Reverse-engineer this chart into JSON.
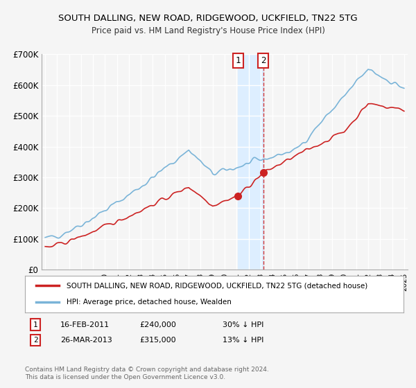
{
  "title": "SOUTH DALLING, NEW ROAD, RIDGEWOOD, UCKFIELD, TN22 5TG",
  "subtitle": "Price paid vs. HM Land Registry's House Price Index (HPI)",
  "legend_line1": "SOUTH DALLING, NEW ROAD, RIDGEWOOD, UCKFIELD, TN22 5TG (detached house)",
  "legend_line2": "HPI: Average price, detached house, Wealden",
  "footer": "Contains HM Land Registry data © Crown copyright and database right 2024.\nThis data is licensed under the Open Government Licence v3.0.",
  "annotation1_date": "16-FEB-2011",
  "annotation1_price": "£240,000",
  "annotation1_hpi": "30% ↓ HPI",
  "annotation2_date": "26-MAR-2013",
  "annotation2_price": "£315,000",
  "annotation2_hpi": "13% ↓ HPI",
  "hpi_color": "#7ab4d8",
  "price_color": "#cc2222",
  "annotation_color": "#cc2222",
  "shade_color": "#ddeeff",
  "background_color": "#f5f5f5",
  "plot_bg_color": "#f5f5f5",
  "grid_color": "#ffffff",
  "ylim": [
    0,
    700000
  ],
  "yticks": [
    0,
    100000,
    200000,
    300000,
    400000,
    500000,
    600000,
    700000
  ],
  "ytick_labels": [
    "£0",
    "£100K",
    "£200K",
    "£300K",
    "£400K",
    "£500K",
    "£600K",
    "£700K"
  ],
  "sale1_x": 2011.12,
  "sale1_y": 240000,
  "sale2_x": 2013.23,
  "sale2_y": 315000,
  "xlim_left": 1994.7,
  "xlim_right": 2025.3
}
